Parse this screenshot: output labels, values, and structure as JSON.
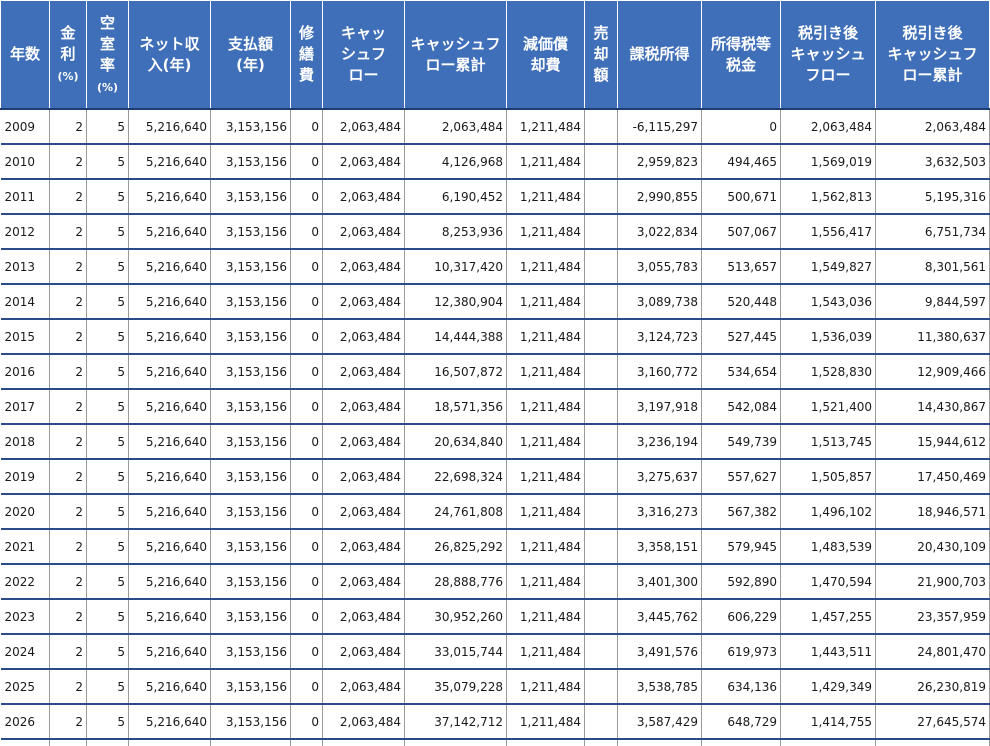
{
  "headers": [
    {
      "main": "年数",
      "unit": ""
    },
    {
      "main": "金\n利",
      "unit": "(%)"
    },
    {
      "main": "空\n室\n率",
      "unit": "(%)"
    },
    {
      "main": "ネット収\n入(年)",
      "unit": ""
    },
    {
      "main": "支払額\n(年)",
      "unit": ""
    },
    {
      "main": "修\n繕\n費",
      "unit": ""
    },
    {
      "main": "キャッ\nシュフ\nロー",
      "unit": ""
    },
    {
      "main": "キャッシュフ\nロー累計",
      "unit": ""
    },
    {
      "main": "減価償\n却費",
      "unit": ""
    },
    {
      "main": "売\n却\n額",
      "unit": ""
    },
    {
      "main": "課税所得",
      "unit": ""
    },
    {
      "main": "所得税等\n税金",
      "unit": ""
    },
    {
      "main": "税引き後\nキャッシュ\nフロー",
      "unit": ""
    },
    {
      "main": "税引き後\nキャッシュフ\nロー累計",
      "unit": ""
    }
  ],
  "rows": [
    [
      "2009",
      "2",
      "5",
      "5,216,640",
      "3,153,156",
      "0",
      "2,063,484",
      "2,063,484",
      "1,211,484",
      "",
      "-6,115,297",
      "0",
      "2,063,484",
      "2,063,484"
    ],
    [
      "2010",
      "2",
      "5",
      "5,216,640",
      "3,153,156",
      "0",
      "2,063,484",
      "4,126,968",
      "1,211,484",
      "",
      "2,959,823",
      "494,465",
      "1,569,019",
      "3,632,503"
    ],
    [
      "2011",
      "2",
      "5",
      "5,216,640",
      "3,153,156",
      "0",
      "2,063,484",
      "6,190,452",
      "1,211,484",
      "",
      "2,990,855",
      "500,671",
      "1,562,813",
      "5,195,316"
    ],
    [
      "2012",
      "2",
      "5",
      "5,216,640",
      "3,153,156",
      "0",
      "2,063,484",
      "8,253,936",
      "1,211,484",
      "",
      "3,022,834",
      "507,067",
      "1,556,417",
      "6,751,734"
    ],
    [
      "2013",
      "2",
      "5",
      "5,216,640",
      "3,153,156",
      "0",
      "2,063,484",
      "10,317,420",
      "1,211,484",
      "",
      "3,055,783",
      "513,657",
      "1,549,827",
      "8,301,561"
    ],
    [
      "2014",
      "2",
      "5",
      "5,216,640",
      "3,153,156",
      "0",
      "2,063,484",
      "12,380,904",
      "1,211,484",
      "",
      "3,089,738",
      "520,448",
      "1,543,036",
      "9,844,597"
    ],
    [
      "2015",
      "2",
      "5",
      "5,216,640",
      "3,153,156",
      "0",
      "2,063,484",
      "14,444,388",
      "1,211,484",
      "",
      "3,124,723",
      "527,445",
      "1,536,039",
      "11,380,637"
    ],
    [
      "2016",
      "2",
      "5",
      "5,216,640",
      "3,153,156",
      "0",
      "2,063,484",
      "16,507,872",
      "1,211,484",
      "",
      "3,160,772",
      "534,654",
      "1,528,830",
      "12,909,466"
    ],
    [
      "2017",
      "2",
      "5",
      "5,216,640",
      "3,153,156",
      "0",
      "2,063,484",
      "18,571,356",
      "1,211,484",
      "",
      "3,197,918",
      "542,084",
      "1,521,400",
      "14,430,867"
    ],
    [
      "2018",
      "2",
      "5",
      "5,216,640",
      "3,153,156",
      "0",
      "2,063,484",
      "20,634,840",
      "1,211,484",
      "",
      "3,236,194",
      "549,739",
      "1,513,745",
      "15,944,612"
    ],
    [
      "2019",
      "2",
      "5",
      "5,216,640",
      "3,153,156",
      "0",
      "2,063,484",
      "22,698,324",
      "1,211,484",
      "",
      "3,275,637",
      "557,627",
      "1,505,857",
      "17,450,469"
    ],
    [
      "2020",
      "2",
      "5",
      "5,216,640",
      "3,153,156",
      "0",
      "2,063,484",
      "24,761,808",
      "1,211,484",
      "",
      "3,316,273",
      "567,382",
      "1,496,102",
      "18,946,571"
    ],
    [
      "2021",
      "2",
      "5",
      "5,216,640",
      "3,153,156",
      "0",
      "2,063,484",
      "26,825,292",
      "1,211,484",
      "",
      "3,358,151",
      "579,945",
      "1,483,539",
      "20,430,109"
    ],
    [
      "2022",
      "2",
      "5",
      "5,216,640",
      "3,153,156",
      "0",
      "2,063,484",
      "28,888,776",
      "1,211,484",
      "",
      "3,401,300",
      "592,890",
      "1,470,594",
      "21,900,703"
    ],
    [
      "2023",
      "2",
      "5",
      "5,216,640",
      "3,153,156",
      "0",
      "2,063,484",
      "30,952,260",
      "1,211,484",
      "",
      "3,445,762",
      "606,229",
      "1,457,255",
      "23,357,959"
    ],
    [
      "2024",
      "2",
      "5",
      "5,216,640",
      "3,153,156",
      "0",
      "2,063,484",
      "33,015,744",
      "1,211,484",
      "",
      "3,491,576",
      "619,973",
      "1,443,511",
      "24,801,470"
    ],
    [
      "2025",
      "2",
      "5",
      "5,216,640",
      "3,153,156",
      "0",
      "2,063,484",
      "35,079,228",
      "1,211,484",
      "",
      "3,538,785",
      "634,136",
      "1,429,349",
      "26,230,819"
    ],
    [
      "2026",
      "2",
      "5",
      "5,216,640",
      "3,153,156",
      "0",
      "2,063,484",
      "37,142,712",
      "1,211,484",
      "",
      "3,587,429",
      "648,729",
      "1,414,755",
      "27,645,574"
    ]
  ],
  "colors": {
    "header_bg": "#3f6fb8",
    "header_text": "#ffffff",
    "row_rule": "#2b4a8a"
  }
}
